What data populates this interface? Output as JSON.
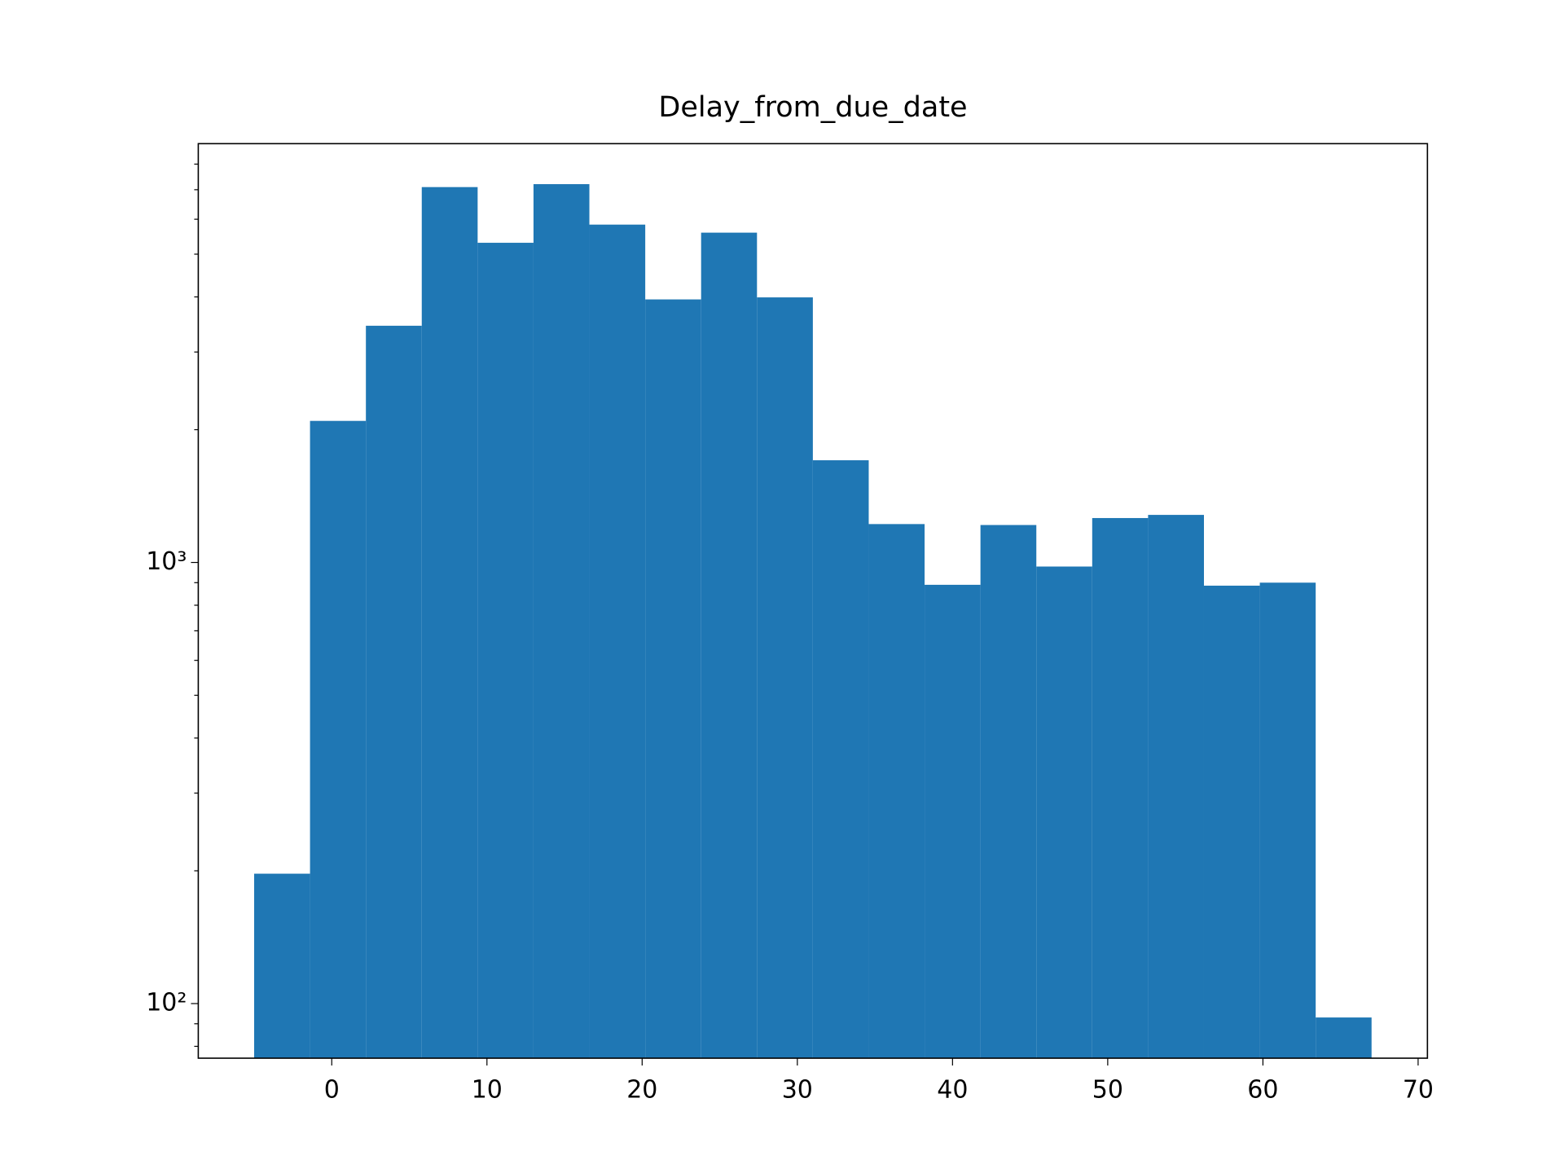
{
  "chart_data": {
    "type": "histogram",
    "title": "Delay_from_due_date",
    "bins": [
      -5,
      -1.4,
      2.2,
      5.8,
      9.4,
      13,
      16.6,
      20.2,
      23.8,
      27.4,
      31,
      34.6,
      38.2,
      41.8,
      45.4,
      49,
      52.6,
      56.2,
      59.8,
      63.4,
      67
    ],
    "values": [
      197,
      2094,
      3441,
      7096,
      5306,
      7206,
      5834,
      3948,
      5594,
      3990,
      1705,
      1222,
      890,
      1216,
      979,
      1261,
      1282,
      886,
      900,
      93
    ],
    "color": "#1f77b4",
    "xlim": [
      -8.6,
      70.6
    ],
    "xticks": [
      0,
      10,
      20,
      30,
      40,
      50,
      60,
      70
    ],
    "ylim": [
      75.2,
      8902
    ],
    "yscale": "log",
    "yticks": [
      {
        "value": 100,
        "label": "10²"
      },
      {
        "value": 1000,
        "label": "10³"
      }
    ],
    "yminorticks": [
      80,
      90,
      200,
      300,
      400,
      500,
      600,
      700,
      800,
      900,
      2000,
      3000,
      4000,
      5000,
      6000,
      7000,
      8000
    ],
    "grid": false
  }
}
